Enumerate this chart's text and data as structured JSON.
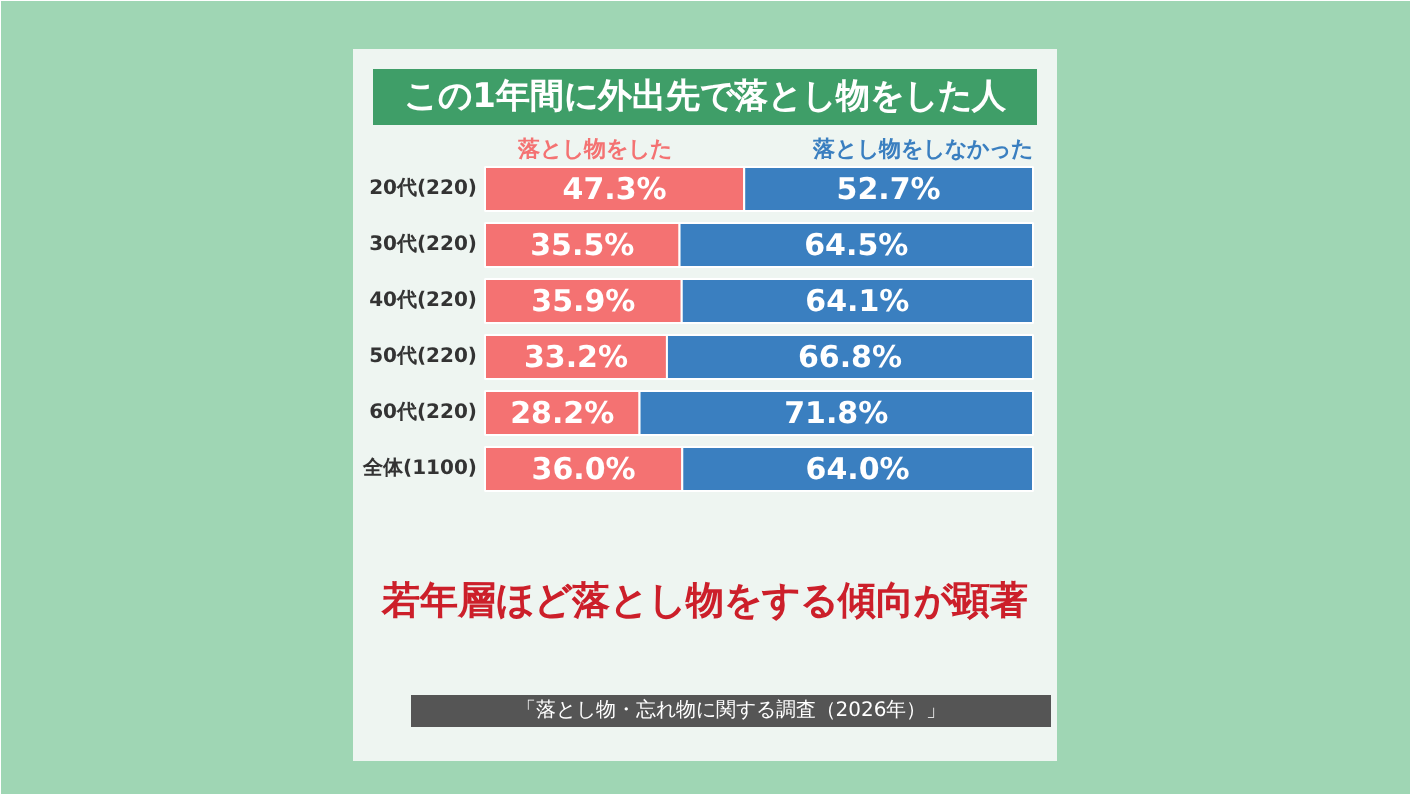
{
  "chart_data": {
    "type": "bar",
    "orientation": "horizontal",
    "stacked": true,
    "xlim": [
      0,
      100
    ],
    "title": "この1年間に外出先で落とし物をした人",
    "categories": [
      "20代(220)",
      "30代(220)",
      "40代(220)",
      "50代(220)",
      "60代(220)",
      "全体(1100)"
    ],
    "series": [
      {
        "name": "落とし物をした",
        "color": "#f47272",
        "values": [
          47.3,
          35.5,
          35.9,
          33.2,
          28.2,
          36.0
        ],
        "value_labels": [
          "47.3%",
          "35.5%",
          "35.9%",
          "33.2%",
          "28.2%",
          "36.0%"
        ]
      },
      {
        "name": "落とし物をしなかった",
        "color": "#3a7fc0",
        "values": [
          52.7,
          64.5,
          64.1,
          66.8,
          71.8,
          64.0
        ],
        "value_labels": [
          "52.7%",
          "64.5%",
          "64.1%",
          "66.8%",
          "71.8%",
          "64.0%"
        ]
      }
    ],
    "legend": "top",
    "annotations": [
      "若年層ほど落とし物をする傾向が顕著",
      "「落とし物・忘れ物に関する調査（2026年）」"
    ]
  }
}
